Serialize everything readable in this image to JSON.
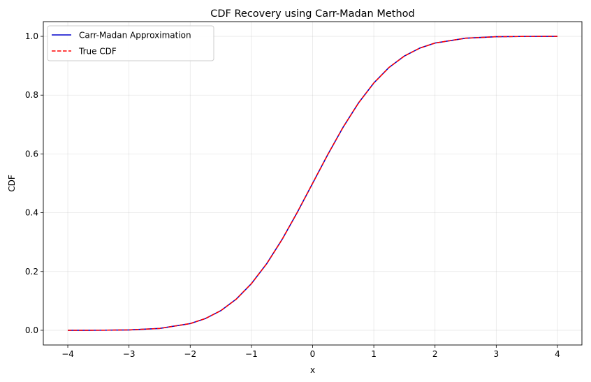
{
  "chart_data": {
    "type": "line",
    "title": "CDF Recovery using Carr-Madan Method",
    "xlabel": "x",
    "ylabel": "CDF",
    "xlim": [
      -4.4,
      4.4
    ],
    "ylim": [
      -0.05,
      1.05
    ],
    "grid": true,
    "legend_position": "upper left",
    "x_ticks": [
      -4,
      -3,
      -2,
      -1,
      0,
      1,
      2,
      3,
      4
    ],
    "x_tick_labels": [
      "−4",
      "−3",
      "−2",
      "−1",
      "0",
      "1",
      "2",
      "3",
      "4"
    ],
    "y_ticks": [
      0.0,
      0.2,
      0.4,
      0.6,
      0.8,
      1.0
    ],
    "y_tick_labels": [
      "0.0",
      "0.2",
      "0.4",
      "0.6",
      "0.8",
      "1.0"
    ],
    "x": [
      -4.0,
      -3.5,
      -3.0,
      -2.5,
      -2.0,
      -1.75,
      -1.5,
      -1.25,
      -1.0,
      -0.75,
      -0.5,
      -0.25,
      0.0,
      0.25,
      0.5,
      0.75,
      1.0,
      1.25,
      1.5,
      1.75,
      2.0,
      2.5,
      3.0,
      3.5,
      4.0
    ],
    "series": [
      {
        "name": "Carr-Madan Approximation",
        "color": "#0000cc",
        "style": "solid",
        "values": [
          0.0,
          0.0002,
          0.0013,
          0.0062,
          0.0228,
          0.0401,
          0.0668,
          0.1056,
          0.1587,
          0.2266,
          0.3085,
          0.4013,
          0.5,
          0.5987,
          0.6915,
          0.7734,
          0.8413,
          0.8944,
          0.9332,
          0.9599,
          0.9772,
          0.9938,
          0.9987,
          0.9998,
          1.0
        ]
      },
      {
        "name": "True CDF",
        "color": "#ff0000",
        "style": "dashed",
        "values": [
          0.0,
          0.0002,
          0.0013,
          0.0062,
          0.0228,
          0.0401,
          0.0668,
          0.1056,
          0.1587,
          0.2266,
          0.3085,
          0.4013,
          0.5,
          0.5987,
          0.6915,
          0.7734,
          0.8413,
          0.8944,
          0.9332,
          0.9599,
          0.9772,
          0.9938,
          0.9987,
          0.9998,
          1.0
        ]
      }
    ]
  }
}
